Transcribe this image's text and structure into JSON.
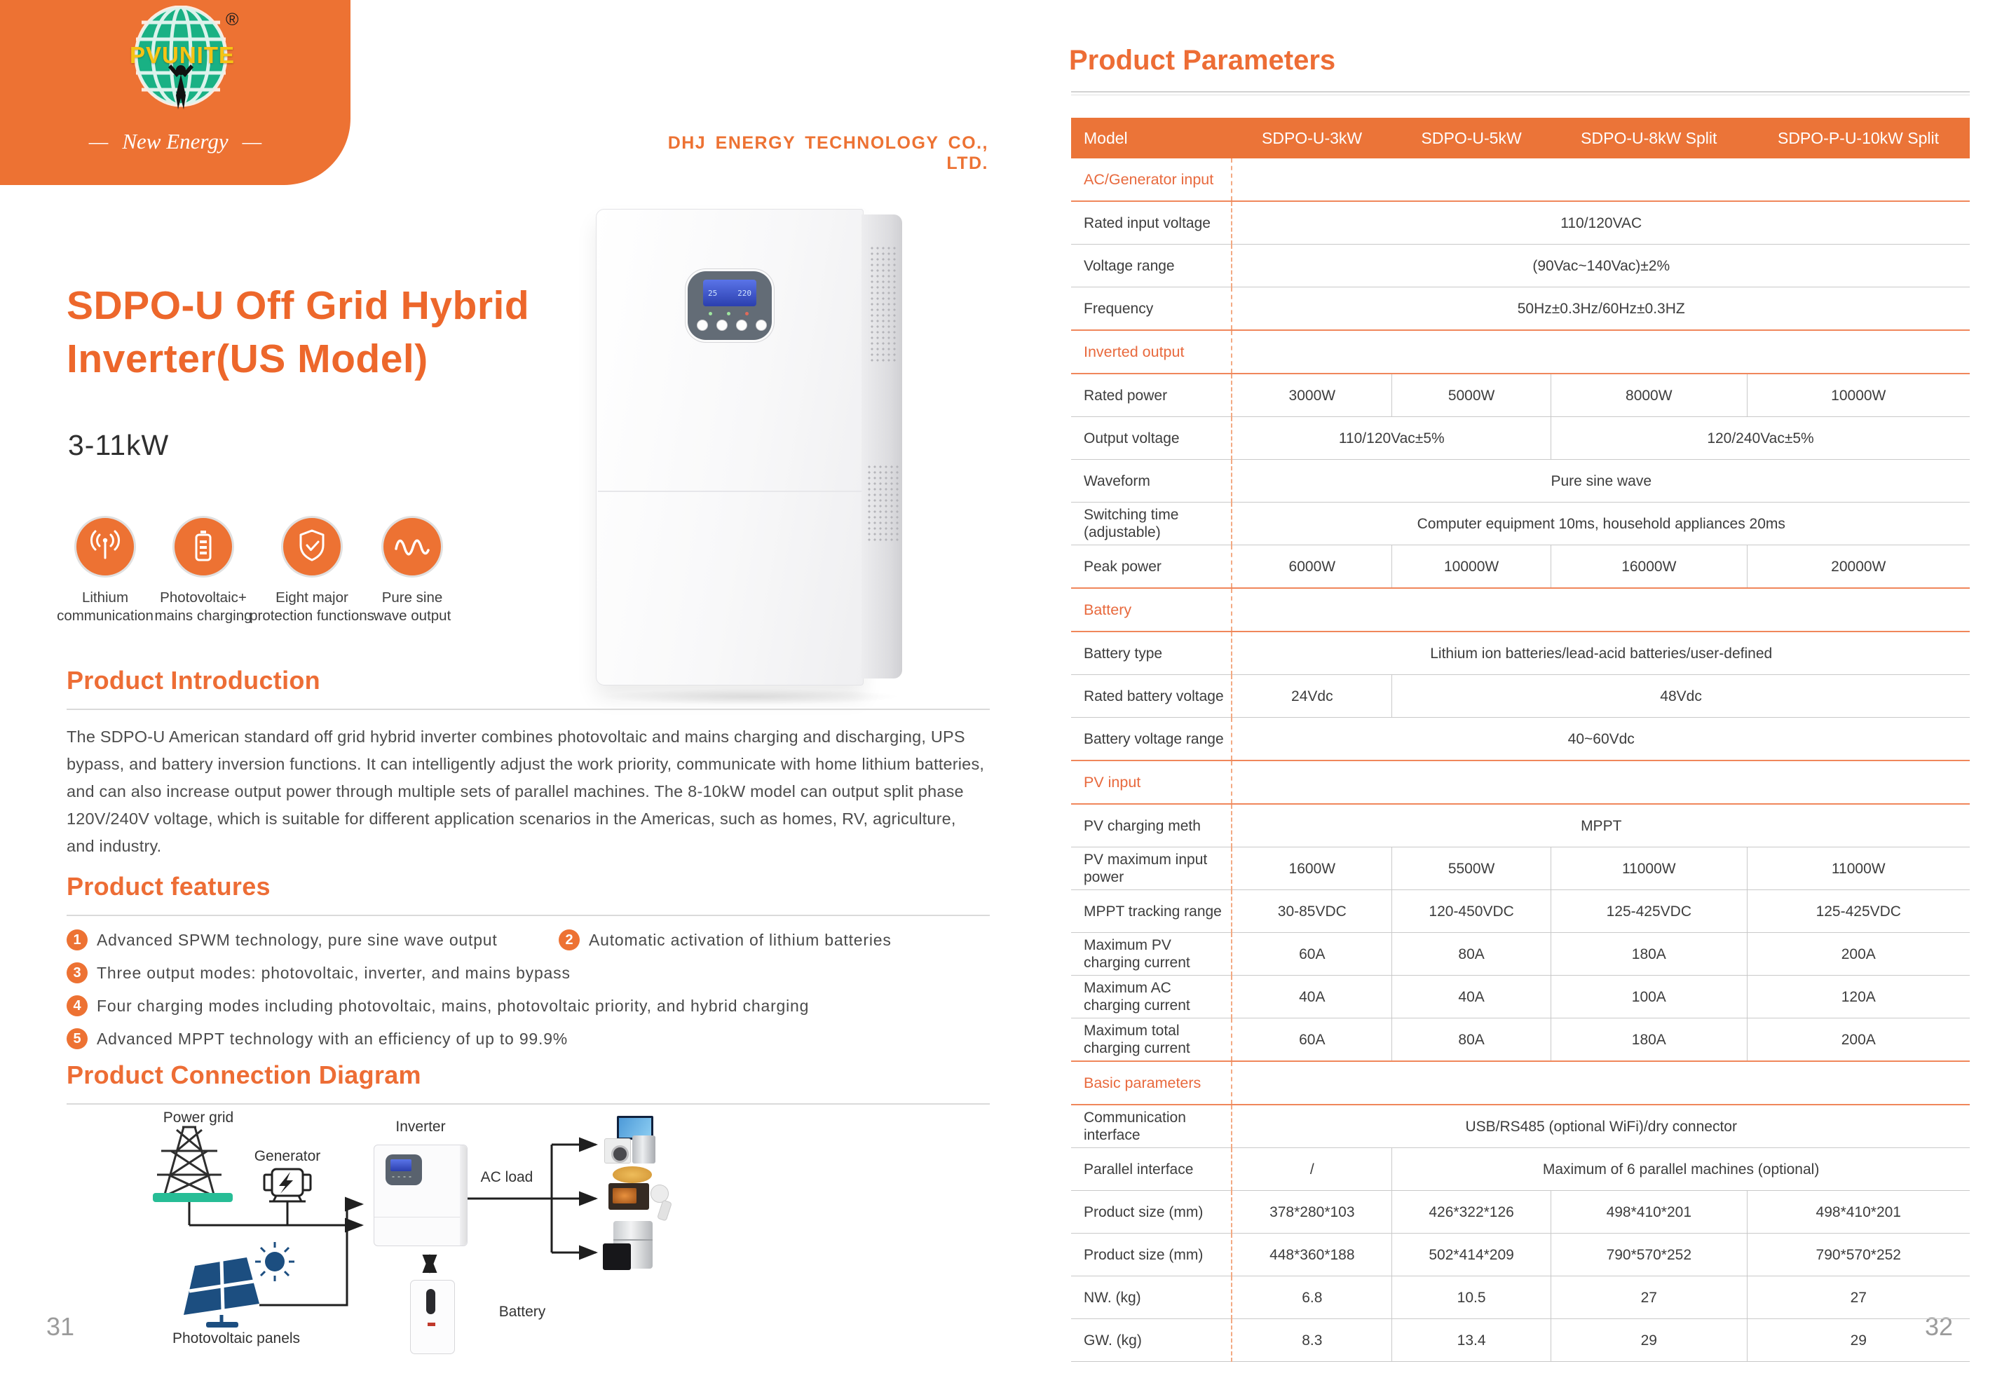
{
  "brand": {
    "logo_text": "PVUNITE",
    "registered": "®",
    "dash": "—",
    "tagline": "New Energy",
    "company": "DHJ ENERGY TECHNOLOGY CO., LTD."
  },
  "left_page": {
    "page_number": "31",
    "hero": {
      "title_line1": "SDPO-U Off Grid Hybrid",
      "title_line2": "Inverter(US Model)",
      "power_range": "3-11kW"
    },
    "badges": [
      {
        "icon": "antenna-icon",
        "lines": [
          "Lithium",
          "communication"
        ]
      },
      {
        "icon": "battery-icon",
        "lines": [
          "Photovoltaic+",
          "mains charging"
        ]
      },
      {
        "icon": "shield-check-icon",
        "lines": [
          "Eight major",
          "protection functions"
        ]
      },
      {
        "icon": "sine-wave-icon",
        "lines": [
          "Pure sine",
          "wave output"
        ]
      }
    ],
    "intro": {
      "heading": "Product Introduction",
      "body": "The SDPO-U American standard off grid hybrid inverter combines photovoltaic and mains charging and discharging, UPS bypass, and battery inversion functions. It can intelligently adjust the work priority, communicate with home lithium batteries, and can also increase output power through multiple sets of parallel machines. The 8-10kW model can output split phase 120V/240V voltage, which is suitable for different application scenarios in the Americas, such as homes, RV, agriculture, and industry."
    },
    "features": {
      "heading": "Product features",
      "items": [
        {
          "num": "1",
          "text": "Advanced SPWM technology, pure sine wave output"
        },
        {
          "num": "2",
          "text": "Automatic activation of lithium batteries"
        },
        {
          "num": "3",
          "text": "Three output modes: photovoltaic, inverter, and mains bypass"
        },
        {
          "num": "4",
          "text": "Four charging modes including photovoltaic, mains, photovoltaic priority, and hybrid charging"
        },
        {
          "num": "5",
          "text": "Advanced MPPT technology with an efficiency of up to 99.9%"
        }
      ]
    },
    "diagram": {
      "heading": "Product Connection Diagram",
      "labels": {
        "power_grid": "Power grid",
        "generator": "Generator",
        "inverter": "Inverter",
        "ac_load": "AC load",
        "battery": "Battery",
        "pv_panels": "Photovoltaic panels"
      }
    }
  },
  "right_page": {
    "page_number": "32",
    "parameters": {
      "heading": "Product Parameters",
      "columns": [
        "Model",
        "SDPO-U-3kW",
        "SDPO-U-5kW",
        "SDPO-U-8kW Split",
        "SDPO-P-U-10kW Split"
      ],
      "sections": [
        {
          "title": "AC/Generator input",
          "rows": [
            {
              "label": "Rated input voltage",
              "cells": [
                {
                  "text": "110/120VAC",
                  "span": 4
                }
              ]
            },
            {
              "label": "Voltage range",
              "cells": [
                {
                  "text": "(90Vac~140Vac)±2%",
                  "span": 4
                }
              ]
            },
            {
              "label": "Frequency",
              "cells": [
                {
                  "text": "50Hz±0.3Hz/60Hz±0.3HZ",
                  "span": 4
                }
              ]
            }
          ]
        },
        {
          "title": "Inverted output",
          "rows": [
            {
              "label": "Rated power",
              "cells": [
                {
                  "text": "3000W",
                  "span": 1
                },
                {
                  "text": "5000W",
                  "span": 1
                },
                {
                  "text": "8000W",
                  "span": 1
                },
                {
                  "text": "10000W",
                  "span": 1
                }
              ]
            },
            {
              "label": "Output voltage",
              "cells": [
                {
                  "text": "110/120Vac±5%",
                  "span": 2
                },
                {
                  "text": "120/240Vac±5%",
                  "span": 2
                }
              ]
            },
            {
              "label": "Waveform",
              "cells": [
                {
                  "text": "Pure sine wave",
                  "span": 4
                }
              ]
            },
            {
              "label": "Switching time (adjustable)",
              "cells": [
                {
                  "text": "Computer equipment 10ms, household appliances 20ms",
                  "span": 4
                }
              ]
            },
            {
              "label": "Peak power",
              "cells": [
                {
                  "text": "6000W",
                  "span": 1
                },
                {
                  "text": "10000W",
                  "span": 1
                },
                {
                  "text": "16000W",
                  "span": 1
                },
                {
                  "text": "20000W",
                  "span": 1
                }
              ]
            }
          ]
        },
        {
          "title": "Battery",
          "rows": [
            {
              "label": "Battery type",
              "cells": [
                {
                  "text": "Lithium ion batteries/lead-acid batteries/user-defined",
                  "span": 4
                }
              ]
            },
            {
              "label": "Rated battery voltage",
              "cells": [
                {
                  "text": "24Vdc",
                  "span": 1
                },
                {
                  "text": "48Vdc",
                  "span": 3
                }
              ]
            },
            {
              "label": "Battery voltage range",
              "cells": [
                {
                  "text": "40~60Vdc",
                  "span": 4
                }
              ]
            }
          ]
        },
        {
          "title": "PV input",
          "rows": [
            {
              "label": "PV charging meth",
              "cells": [
                {
                  "text": "MPPT",
                  "span": 4
                }
              ]
            },
            {
              "label": "PV maximum input power",
              "cells": [
                {
                  "text": "1600W",
                  "span": 1
                },
                {
                  "text": "5500W",
                  "span": 1
                },
                {
                  "text": "11000W",
                  "span": 1
                },
                {
                  "text": "11000W",
                  "span": 1
                }
              ]
            },
            {
              "label": "MPPT tracking range",
              "cells": [
                {
                  "text": "30-85VDC",
                  "span": 1
                },
                {
                  "text": "120-450VDC",
                  "span": 1
                },
                {
                  "text": "125-425VDC",
                  "span": 1
                },
                {
                  "text": "125-425VDC",
                  "span": 1
                }
              ]
            },
            {
              "label": "Maximum PV charging current",
              "cells": [
                {
                  "text": "60A",
                  "span": 1
                },
                {
                  "text": "80A",
                  "span": 1
                },
                {
                  "text": "180A",
                  "span": 1
                },
                {
                  "text": "200A",
                  "span": 1
                }
              ]
            },
            {
              "label": "Maximum AC charging current",
              "cells": [
                {
                  "text": "40A",
                  "span": 1
                },
                {
                  "text": "40A",
                  "span": 1
                },
                {
                  "text": "100A",
                  "span": 1
                },
                {
                  "text": "120A",
                  "span": 1
                }
              ]
            },
            {
              "label": "Maximum total charging current",
              "cells": [
                {
                  "text": "60A",
                  "span": 1
                },
                {
                  "text": "80A",
                  "span": 1
                },
                {
                  "text": "180A",
                  "span": 1
                },
                {
                  "text": "200A",
                  "span": 1
                }
              ]
            }
          ]
        },
        {
          "title": "Basic parameters",
          "rows": [
            {
              "label": "Communication interface",
              "cells": [
                {
                  "text": "USB/RS485 (optional WiFi)/dry connector",
                  "span": 4
                }
              ]
            },
            {
              "label": "Parallel interface",
              "cells": [
                {
                  "text": "/",
                  "span": 1
                },
                {
                  "text": "Maximum of 6 parallel machines (optional)",
                  "span": 3
                }
              ]
            },
            {
              "label": "Product size (mm)",
              "cells": [
                {
                  "text": "378*280*103",
                  "span": 1
                },
                {
                  "text": "426*322*126",
                  "span": 1
                },
                {
                  "text": "498*410*201",
                  "span": 1
                },
                {
                  "text": "498*410*201",
                  "span": 1
                }
              ]
            },
            {
              "label": "Product size (mm)",
              "cells": [
                {
                  "text": "448*360*188",
                  "span": 1
                },
                {
                  "text": "502*414*209",
                  "span": 1
                },
                {
                  "text": "790*570*252",
                  "span": 1
                },
                {
                  "text": "790*570*252",
                  "span": 1
                }
              ]
            },
            {
              "label": "NW. (kg)",
              "cells": [
                {
                  "text": "6.8",
                  "span": 1
                },
                {
                  "text": "10.5",
                  "span": 1
                },
                {
                  "text": "27",
                  "span": 1
                },
                {
                  "text": "27",
                  "span": 1
                }
              ]
            },
            {
              "label": "GW. (kg)",
              "cells": [
                {
                  "text": "8.3",
                  "span": 1
                },
                {
                  "text": "13.4",
                  "span": 1
                },
                {
                  "text": "29",
                  "span": 1
                },
                {
                  "text": "29",
                  "span": 1
                }
              ]
            }
          ]
        }
      ]
    }
  },
  "colors": {
    "brand_orange": "#ED7233",
    "table_header_orange": "#EB7438",
    "heading_orange": "#ED6D35",
    "section_text_orange": "#E8693D",
    "orange_rule": "#F0875B",
    "dashed_orange": "#F3A982",
    "gray_rule": "#C9C9C9",
    "text_dark": "#3D3D3D",
    "page_number_gray": "#9B9B9B",
    "pv_blue": "#1C4E80",
    "base_green": "#27BD96",
    "logo_yellow": "#F6C414"
  }
}
